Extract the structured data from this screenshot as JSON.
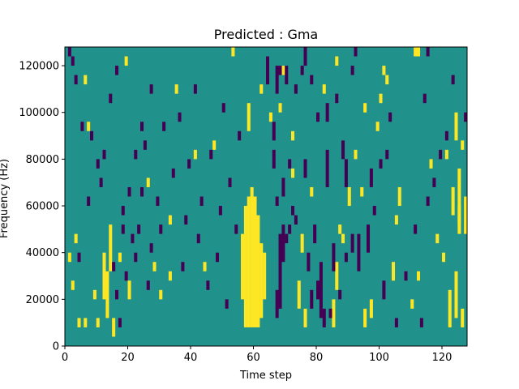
{
  "chart_data": {
    "type": "heatmap",
    "title": "Predicted : Gma",
    "xlabel": "Time step",
    "ylabel": "Frequency (Hz)",
    "xlim": [
      0,
      128
    ],
    "ylim": [
      0,
      128000
    ],
    "x_ticks": [
      0,
      20,
      40,
      60,
      80,
      100,
      120
    ],
    "y_ticks": [
      0,
      20000,
      40000,
      60000,
      80000,
      100000,
      120000
    ],
    "x_tick_labels": [
      "0",
      "20",
      "40",
      "60",
      "80",
      "100",
      "120"
    ],
    "y_tick_labels": [
      "0",
      "20000",
      "40000",
      "60000",
      "80000",
      "100000",
      "120000"
    ],
    "grid": false,
    "legend": "none",
    "grid_shape": {
      "time_steps": 128,
      "frequency_bins": 32
    },
    "bin_height_hz": 4000,
    "colors": {
      "background": "#21918c",
      "high": "#fde725",
      "low": "#440154"
    },
    "high_cells": [
      [
        57,
        2,
        15
      ],
      [
        58,
        2,
        16
      ],
      [
        59,
        2,
        17
      ],
      [
        60,
        2,
        16
      ],
      [
        61,
        2,
        14
      ],
      [
        62,
        3,
        11
      ],
      [
        56,
        5,
        12
      ],
      [
        63,
        5,
        10
      ],
      [
        13,
        3,
        8
      ],
      [
        14,
        8,
        13
      ],
      [
        12,
        5,
        10
      ],
      [
        15,
        1,
        3
      ],
      [
        4,
        2,
        3
      ],
      [
        6,
        2,
        3
      ],
      [
        9,
        5,
        6
      ],
      [
        20,
        5,
        7
      ],
      [
        28,
        8,
        9
      ],
      [
        33,
        7,
        8
      ],
      [
        44,
        8,
        9
      ],
      [
        74,
        4,
        7
      ],
      [
        76,
        2,
        4
      ],
      [
        75,
        10,
        12
      ],
      [
        78,
        16,
        17
      ],
      [
        85,
        2,
        5
      ],
      [
        86,
        6,
        9
      ],
      [
        88,
        11,
        12
      ],
      [
        90,
        15,
        17
      ],
      [
        95,
        2,
        4
      ],
      [
        97,
        3,
        5
      ],
      [
        104,
        7,
        9
      ],
      [
        106,
        15,
        17
      ],
      [
        110,
        4,
        5
      ],
      [
        112,
        7,
        8
      ],
      [
        122,
        2,
        6
      ],
      [
        123,
        14,
        17
      ],
      [
        124,
        3,
        8
      ],
      [
        125,
        12,
        19
      ],
      [
        126,
        2,
        4
      ],
      [
        127,
        12,
        16
      ],
      [
        10,
        2,
        3
      ],
      [
        2,
        6,
        7
      ],
      [
        1,
        9,
        10
      ],
      [
        3,
        11,
        12
      ],
      [
        6,
        28,
        29
      ],
      [
        7,
        23,
        24
      ],
      [
        19,
        30,
        31
      ],
      [
        35,
        27,
        28
      ],
      [
        58,
        23,
        26
      ],
      [
        62,
        27,
        28
      ],
      [
        64,
        29,
        31
      ],
      [
        65,
        24,
        25
      ],
      [
        68,
        25,
        26
      ],
      [
        72,
        22,
        23
      ],
      [
        92,
        20,
        21
      ],
      [
        99,
        23,
        24
      ],
      [
        100,
        26,
        27
      ],
      [
        102,
        28,
        29
      ],
      [
        105,
        13,
        14
      ],
      [
        118,
        11,
        12
      ],
      [
        116,
        19,
        20
      ],
      [
        120,
        9,
        10
      ],
      [
        121,
        20,
        21
      ],
      [
        124,
        22,
        25
      ],
      [
        125,
        13,
        15
      ],
      [
        126,
        21,
        22
      ],
      [
        111,
        31,
        32
      ],
      [
        112,
        31,
        32
      ],
      [
        101,
        29,
        30
      ],
      [
        82,
        27,
        28
      ],
      [
        87,
        12,
        13
      ],
      [
        94,
        16,
        17
      ],
      [
        41,
        20,
        21
      ],
      [
        17,
        9,
        10
      ],
      [
        30,
        5,
        6
      ],
      [
        26,
        17,
        18
      ],
      [
        33,
        13,
        14
      ],
      [
        47,
        21,
        22
      ],
      [
        53,
        31,
        32
      ],
      [
        69,
        29,
        30
      ],
      [
        72,
        18,
        19
      ],
      [
        86,
        30,
        31
      ],
      [
        95,
        25,
        26
      ]
    ],
    "low_cells": [
      [
        67,
        3,
        6
      ],
      [
        68,
        4,
        12
      ],
      [
        69,
        9,
        13
      ],
      [
        70,
        11,
        12
      ],
      [
        71,
        12,
        13
      ],
      [
        72,
        14,
        15
      ],
      [
        73,
        13,
        14
      ],
      [
        66,
        19,
        21
      ],
      [
        67,
        27,
        30
      ],
      [
        69,
        16,
        18
      ],
      [
        64,
        28,
        31
      ],
      [
        78,
        4,
        6
      ],
      [
        80,
        5,
        7
      ],
      [
        81,
        3,
        9
      ],
      [
        82,
        2,
        4
      ],
      [
        84,
        3,
        4
      ],
      [
        83,
        17,
        21
      ],
      [
        85,
        8,
        11
      ],
      [
        87,
        5,
        6
      ],
      [
        89,
        17,
        20
      ],
      [
        91,
        10,
        12
      ],
      [
        93,
        8,
        12
      ],
      [
        96,
        10,
        13
      ],
      [
        98,
        14,
        15
      ],
      [
        100,
        19,
        20
      ],
      [
        102,
        20,
        21
      ],
      [
        103,
        24,
        25
      ],
      [
        91,
        29,
        30
      ],
      [
        89,
        9,
        10
      ],
      [
        79,
        11,
        13
      ],
      [
        77,
        8,
        10
      ],
      [
        76,
        18,
        20
      ],
      [
        66,
        22,
        24
      ],
      [
        67,
        15,
        16
      ],
      [
        68,
        29,
        30
      ],
      [
        70,
        28,
        30
      ],
      [
        71,
        19,
        20
      ],
      [
        73,
        27,
        28
      ],
      [
        75,
        29,
        30
      ],
      [
        76,
        30,
        32
      ],
      [
        78,
        28,
        29
      ],
      [
        80,
        24,
        25
      ],
      [
        83,
        24,
        26
      ],
      [
        86,
        26,
        27
      ],
      [
        88,
        20,
        22
      ],
      [
        92,
        31,
        32
      ],
      [
        97,
        17,
        19
      ],
      [
        101,
        5,
        7
      ],
      [
        105,
        2,
        3
      ],
      [
        108,
        7,
        8
      ],
      [
        111,
        12,
        13
      ],
      [
        115,
        15,
        16
      ],
      [
        117,
        17,
        18
      ],
      [
        119,
        20,
        21
      ],
      [
        121,
        22,
        23
      ],
      [
        123,
        28,
        29
      ],
      [
        113,
        2,
        3
      ],
      [
        114,
        26,
        27
      ],
      [
        115,
        31,
        32
      ],
      [
        127,
        24,
        25
      ],
      [
        1,
        31,
        32
      ],
      [
        2,
        30,
        31
      ],
      [
        3,
        28,
        29
      ],
      [
        5,
        23,
        24
      ],
      [
        8,
        22,
        23
      ],
      [
        10,
        19,
        20
      ],
      [
        11,
        17,
        18
      ],
      [
        15,
        8,
        9
      ],
      [
        16,
        5,
        6
      ],
      [
        17,
        2,
        3
      ],
      [
        18,
        14,
        15
      ],
      [
        19,
        7,
        8
      ],
      [
        21,
        11,
        12
      ],
      [
        22,
        9,
        10
      ],
      [
        23,
        12,
        13
      ],
      [
        24,
        16,
        17
      ],
      [
        25,
        21,
        22
      ],
      [
        26,
        6,
        7
      ],
      [
        27,
        10,
        11
      ],
      [
        29,
        15,
        16
      ],
      [
        30,
        12,
        13
      ],
      [
        31,
        23,
        24
      ],
      [
        34,
        18,
        19
      ],
      [
        36,
        24,
        25
      ],
      [
        37,
        8,
        9
      ],
      [
        38,
        13,
        14
      ],
      [
        39,
        19,
        20
      ],
      [
        41,
        27,
        28
      ],
      [
        42,
        11,
        12
      ],
      [
        43,
        15,
        16
      ],
      [
        45,
        6,
        7
      ],
      [
        46,
        20,
        21
      ],
      [
        48,
        9,
        10
      ],
      [
        49,
        14,
        15
      ],
      [
        50,
        25,
        26
      ],
      [
        51,
        4,
        5
      ],
      [
        52,
        17,
        18
      ],
      [
        54,
        12,
        13
      ],
      [
        55,
        22,
        23
      ],
      [
        4,
        9,
        10
      ],
      [
        7,
        15,
        16
      ],
      [
        12,
        20,
        21
      ],
      [
        14,
        26,
        27
      ],
      [
        16,
        29,
        30
      ],
      [
        18,
        12,
        13
      ],
      [
        20,
        16,
        17
      ],
      [
        22,
        20,
        21
      ],
      [
        24,
        23,
        24
      ],
      [
        27,
        27,
        28
      ]
    ]
  }
}
